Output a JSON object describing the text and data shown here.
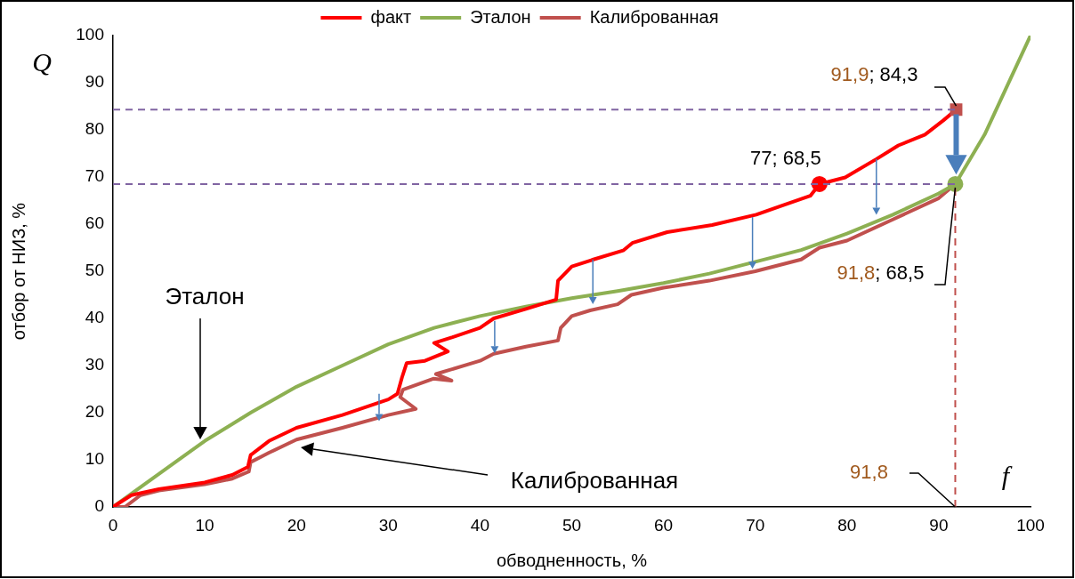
{
  "chart_data": {
    "type": "line",
    "xlabel": "обводненность, %",
    "ylabel": "отбор от НИЗ, %",
    "xlim": [
      0,
      100
    ],
    "ylim": [
      0,
      100
    ],
    "xticks": [
      0,
      10,
      20,
      30,
      40,
      50,
      60,
      70,
      80,
      90,
      100
    ],
    "yticks": [
      0,
      10,
      20,
      30,
      40,
      50,
      60,
      70,
      80,
      90,
      100
    ],
    "grid": false,
    "legend": "top",
    "marker": "none",
    "line_style": "solid",
    "series": [
      {
        "name": "факт",
        "color": "#ff0000",
        "x": [
          0,
          2,
          5,
          10,
          13,
          14.7,
          15,
          17,
          20,
          25,
          30,
          31,
          31.5,
          32,
          34,
          36.5,
          35,
          37,
          40,
          41.5,
          45,
          48.3,
          48.5,
          50,
          52.2,
          55.6,
          56.6,
          60.4,
          65.3,
          70.1,
          73,
          76,
          77,
          79.8,
          83.2,
          85.6,
          88.5,
          90.5,
          91.9
        ],
        "values": [
          0,
          2.5,
          3.8,
          5.2,
          6.8,
          8.5,
          11,
          14,
          16.8,
          19.5,
          22.8,
          24,
          27.5,
          30.5,
          31,
          33,
          34.8,
          36,
          38,
          40,
          42,
          44,
          48,
          51,
          52.4,
          54.4,
          56,
          58.3,
          59.8,
          62,
          64,
          66,
          68.5,
          69.9,
          73.8,
          76.7,
          79,
          82,
          84.3
        ]
      },
      {
        "name": "Эталон",
        "color": "#8db052",
        "x": [
          0,
          5,
          10,
          15,
          20,
          25,
          30,
          35,
          40,
          45,
          50,
          55,
          60,
          65,
          70,
          75,
          80,
          85,
          90,
          91.8,
          95,
          97.5,
          100
        ],
        "values": [
          0,
          7,
          14,
          20,
          25.5,
          30,
          34.5,
          38,
          40.5,
          42.5,
          44.3,
          45.8,
          47.5,
          49.5,
          52,
          54.5,
          58,
          62,
          66.5,
          68.5,
          79,
          89.5,
          100
        ]
      },
      {
        "name": "Калиброванная",
        "color": "#c0504d",
        "x": [
          0,
          1.3,
          3,
          5,
          10,
          13,
          14.8,
          15,
          17,
          20,
          25,
          30,
          33,
          31.3,
          31.6,
          34.9,
          36.9,
          35.2,
          40,
          41.5,
          45,
          48.5,
          48.8,
          50,
          52,
          55,
          56.5,
          60,
          65,
          70,
          75,
          77,
          80,
          85,
          90,
          91.8
        ],
        "values": [
          0,
          0,
          2.5,
          3.5,
          4.8,
          6,
          7.5,
          9.5,
          11.5,
          14.3,
          16.8,
          19.5,
          20.8,
          23.3,
          24.9,
          27.2,
          26.8,
          28.2,
          31,
          32.5,
          34,
          35.3,
          38,
          40.5,
          41.7,
          43,
          45,
          46.5,
          48,
          50,
          52.5,
          55,
          56.5,
          61,
          65.5,
          68.5
        ]
      },
      {
        "type": "scatter",
        "color": "#ff0000",
        "marker": "circle",
        "x": [
          77
        ],
        "values": [
          68.5
        ]
      },
      {
        "type": "scatter",
        "color": "#c0504d",
        "marker": "square",
        "x": [
          91.9
        ],
        "values": [
          84.3
        ]
      },
      {
        "type": "scatter",
        "color": "#8db052",
        "marker": "circle",
        "x": [
          91.8
        ],
        "values": [
          68.5
        ]
      }
    ],
    "ref_lines": [
      {
        "axis": "y",
        "value": 84.3,
        "color": "#8064a2",
        "line_style": "dashed"
      },
      {
        "axis": "y",
        "value": 68.5,
        "color": "#8064a2",
        "line_style": "dashed"
      },
      {
        "axis": "x",
        "value": 91.8,
        "color": "#c0504d",
        "line_style": "dashed"
      }
    ],
    "annotations": [
      "Q",
      "f",
      "Эталон",
      "Калиброванная",
      {
        "text": "77; 68,5",
        "x": 77,
        "y": 68.5
      },
      {
        "text": "91,9; 84,3",
        "x": 91.9,
        "y": 84.3
      },
      {
        "text": "91,8; 68,5",
        "x": 91.8,
        "y": 68.5
      },
      {
        "text": "91,8",
        "x": 91.8,
        "y": 0
      }
    ]
  }
}
